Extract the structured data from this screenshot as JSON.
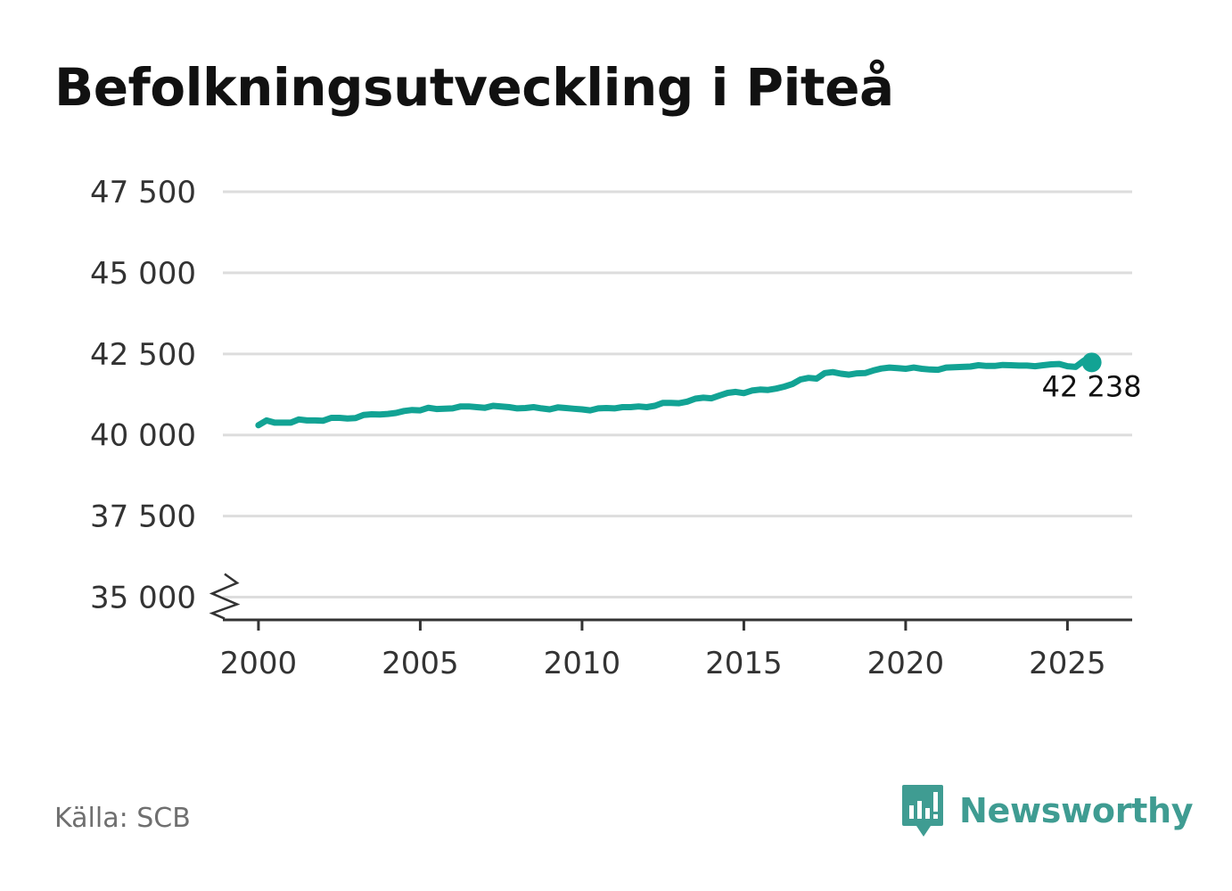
{
  "title": "Befolkningsutveckling i Piteå",
  "source": "Källa: SCB",
  "brand": {
    "name": "Newsworthy",
    "icon": "newsworthy-logo-icon",
    "color": "#3f9c92"
  },
  "colors": {
    "line": "#12a394",
    "grid": "#dddddd",
    "axis": "#333333",
    "tick_text": "#333333"
  },
  "chart_data": {
    "type": "line",
    "title": "Befolkningsutveckling i Piteå",
    "xlabel": "",
    "ylabel": "",
    "xlim": [
      1998.9,
      2027.0
    ],
    "ylim": [
      34300,
      47500
    ],
    "axis_break": true,
    "grid": "horizontal",
    "x_ticks": [
      {
        "value": 2000,
        "label": "2000"
      },
      {
        "value": 2005,
        "label": "2005"
      },
      {
        "value": 2010,
        "label": "2010"
      },
      {
        "value": 2015,
        "label": "2015"
      },
      {
        "value": 2020,
        "label": "2020"
      },
      {
        "value": 2025,
        "label": "2025"
      }
    ],
    "y_ticks": [
      {
        "value": 35000,
        "label": "35 000"
      },
      {
        "value": 37500,
        "label": "37 500"
      },
      {
        "value": 40000,
        "label": "40 000"
      },
      {
        "value": 42500,
        "label": "42 500"
      },
      {
        "value": 45000,
        "label": "45 000"
      },
      {
        "value": 47500,
        "label": "47 500"
      }
    ],
    "end_label": "42 238",
    "series": [
      {
        "x": [
          2000.0,
          2000.25,
          2000.5,
          2000.75,
          2001.0,
          2001.25,
          2001.5,
          2001.75,
          2002.0,
          2002.25,
          2002.5,
          2002.75,
          2003.0,
          2003.25,
          2003.5,
          2003.75,
          2004.0,
          2004.25,
          2004.5,
          2004.75,
          2005.0,
          2005.25,
          2005.5,
          2005.75,
          2006.0,
          2006.25,
          2006.5,
          2006.75,
          2007.0,
          2007.25,
          2007.5,
          2007.75,
          2008.0,
          2008.25,
          2008.5,
          2008.75,
          2009.0,
          2009.25,
          2009.5,
          2009.75,
          2010.0,
          2010.25,
          2010.5,
          2010.75,
          2011.0,
          2011.25,
          2011.5,
          2011.75,
          2012.0,
          2012.25,
          2012.5,
          2012.75,
          2013.0,
          2013.25,
          2013.5,
          2013.75,
          2014.0,
          2014.25,
          2014.5,
          2014.75,
          2015.0,
          2015.25,
          2015.5,
          2015.75,
          2016.0,
          2016.25,
          2016.5,
          2016.75,
          2017.0,
          2017.25,
          2017.5,
          2017.75,
          2018.0,
          2018.25,
          2018.5,
          2018.75,
          2019.0,
          2019.25,
          2019.5,
          2019.75,
          2020.0,
          2020.25,
          2020.5,
          2020.75,
          2021.0,
          2021.25,
          2021.5,
          2021.75,
          2022.0,
          2022.25,
          2022.5,
          2022.75,
          2023.0,
          2023.25,
          2023.5,
          2023.75,
          2024.0,
          2024.25,
          2024.5,
          2024.75,
          2025.0,
          2025.25,
          2025.5,
          2025.75
        ],
        "y": [
          40300,
          40450,
          40380,
          40380,
          40380,
          40480,
          40450,
          40450,
          40440,
          40530,
          40530,
          40510,
          40520,
          40620,
          40640,
          40630,
          40650,
          40680,
          40740,
          40770,
          40760,
          40840,
          40800,
          40810,
          40820,
          40880,
          40880,
          40860,
          40840,
          40900,
          40880,
          40860,
          40820,
          40830,
          40860,
          40820,
          40790,
          40850,
          40830,
          40810,
          40790,
          40760,
          40820,
          40830,
          40820,
          40860,
          40860,
          40880,
          40860,
          40900,
          40990,
          40990,
          40980,
          41030,
          41120,
          41150,
          41130,
          41220,
          41300,
          41330,
          41290,
          41370,
          41400,
          41390,
          41430,
          41490,
          41570,
          41710,
          41760,
          41740,
          41910,
          41940,
          41890,
          41860,
          41900,
          41910,
          41990,
          42050,
          42080,
          42060,
          42040,
          42080,
          42040,
          42020,
          42010,
          42080,
          42090,
          42100,
          42110,
          42150,
          42130,
          42130,
          42160,
          42150,
          42140,
          42140,
          42120,
          42150,
          42180,
          42190,
          42120,
          42100,
          42290,
          42238
        ],
        "last_x": 2025.75,
        "last_y": 42238
      }
    ]
  }
}
